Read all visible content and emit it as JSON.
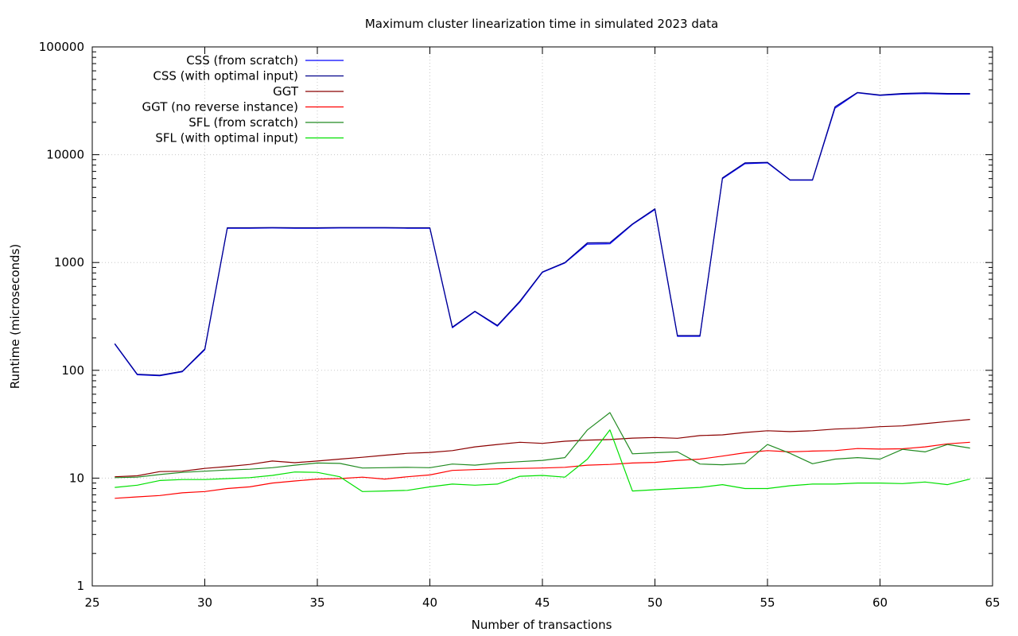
{
  "chart_data": {
    "type": "line",
    "title": "Maximum cluster linearization time in simulated 2023 data",
    "xlabel": "Number of transactions",
    "ylabel": "Runtime (microseconds)",
    "xlim": [
      25,
      65
    ],
    "ylim": [
      1,
      100000
    ],
    "yscale": "log",
    "grid": true,
    "legend_position": "top-left",
    "x_ticks": [
      "25",
      "30",
      "35",
      "40",
      "45",
      "50",
      "55",
      "60",
      "65"
    ],
    "y_ticks": [
      "1",
      "10",
      "100",
      "1000",
      "10000",
      "100000"
    ],
    "x": [
      26,
      27,
      28,
      29,
      30,
      31,
      32,
      33,
      34,
      35,
      36,
      37,
      38,
      39,
      40,
      41,
      42,
      43,
      44,
      45,
      46,
      47,
      48,
      49,
      50,
      51,
      52,
      53,
      54,
      55,
      56,
      57,
      58,
      59,
      60,
      61,
      62,
      63,
      64
    ],
    "series": [
      {
        "name": "CSS (from scratch)",
        "color": "#0000ff",
        "values": [
          175,
          91,
          89,
          97,
          155,
          2080,
          2080,
          2090,
          2080,
          2080,
          2090,
          2090,
          2090,
          2080,
          2080,
          248,
          350,
          257,
          430,
          810,
          990,
          1480,
          1490,
          2250,
          3100,
          207,
          207,
          6000,
          8250,
          8400,
          5800,
          5800,
          27000,
          37500,
          35500,
          36500,
          37000,
          36500,
          36500
        ]
      },
      {
        "name": "CSS (with optimal input)",
        "color": "#00008b",
        "values": [
          177,
          92,
          90,
          98,
          158,
          2100,
          2100,
          2110,
          2100,
          2100,
          2110,
          2110,
          2110,
          2100,
          2100,
          252,
          353,
          261,
          438,
          818,
          1000,
          1520,
          1530,
          2280,
          3150,
          210,
          210,
          6100,
          8400,
          8500,
          5850,
          5850,
          27800,
          37800,
          35800,
          37000,
          37500,
          37000,
          37000
        ]
      },
      {
        "name": "GGT",
        "color": "#8b0000",
        "values": [
          10.3,
          10.5,
          11.5,
          11.6,
          12.3,
          12.8,
          13.4,
          14.4,
          13.9,
          14.4,
          15.0,
          15.6,
          16.3,
          17.0,
          17.3,
          18.0,
          19.5,
          20.5,
          21.5,
          21.0,
          22.0,
          22.5,
          22.8,
          23.5,
          23.8,
          23.4,
          24.8,
          25.2,
          26.5,
          27.5,
          27.0,
          27.5,
          28.5,
          29.0,
          30.0,
          30.5,
          32.0,
          33.5,
          35.0
        ]
      },
      {
        "name": "GGT (no reverse instance)",
        "color": "#ff0000",
        "values": [
          6.5,
          6.7,
          6.9,
          7.3,
          7.5,
          8.0,
          8.3,
          9.0,
          9.4,
          9.8,
          9.9,
          10.2,
          9.8,
          10.3,
          10.7,
          11.8,
          12.0,
          12.2,
          12.3,
          12.4,
          12.6,
          13.2,
          13.4,
          13.8,
          14.0,
          14.6,
          15.0,
          16.0,
          17.2,
          18.0,
          17.5,
          17.8,
          18.0,
          18.8,
          18.6,
          18.7,
          19.5,
          20.8,
          21.5
        ]
      },
      {
        "name": "SFL (from scratch)",
        "color": "#228b22",
        "values": [
          10.1,
          10.2,
          10.8,
          11.3,
          11.6,
          11.9,
          12.1,
          12.5,
          13.2,
          13.8,
          13.7,
          12.4,
          12.5,
          12.6,
          12.5,
          13.5,
          13.2,
          13.8,
          14.2,
          14.6,
          15.5,
          28.0,
          40.5,
          16.8,
          17.2,
          17.5,
          13.5,
          13.3,
          13.7,
          20.5,
          17.0,
          13.6,
          15.0,
          15.5,
          15.0,
          18.5,
          17.5,
          20.5,
          19.0
        ]
      },
      {
        "name": "SFL (with optimal input)",
        "color": "#00e000",
        "values": [
          8.2,
          8.6,
          9.5,
          9.7,
          9.7,
          9.9,
          10.1,
          10.6,
          11.4,
          11.3,
          10.3,
          7.5,
          7.6,
          7.7,
          8.3,
          8.8,
          8.6,
          8.8,
          10.4,
          10.6,
          10.2,
          15.0,
          28.0,
          7.6,
          7.8,
          8.0,
          8.2,
          8.7,
          8.0,
          8.0,
          8.5,
          8.8,
          8.8,
          9.0,
          9.0,
          8.9,
          9.2,
          8.7,
          9.8
        ]
      }
    ]
  }
}
